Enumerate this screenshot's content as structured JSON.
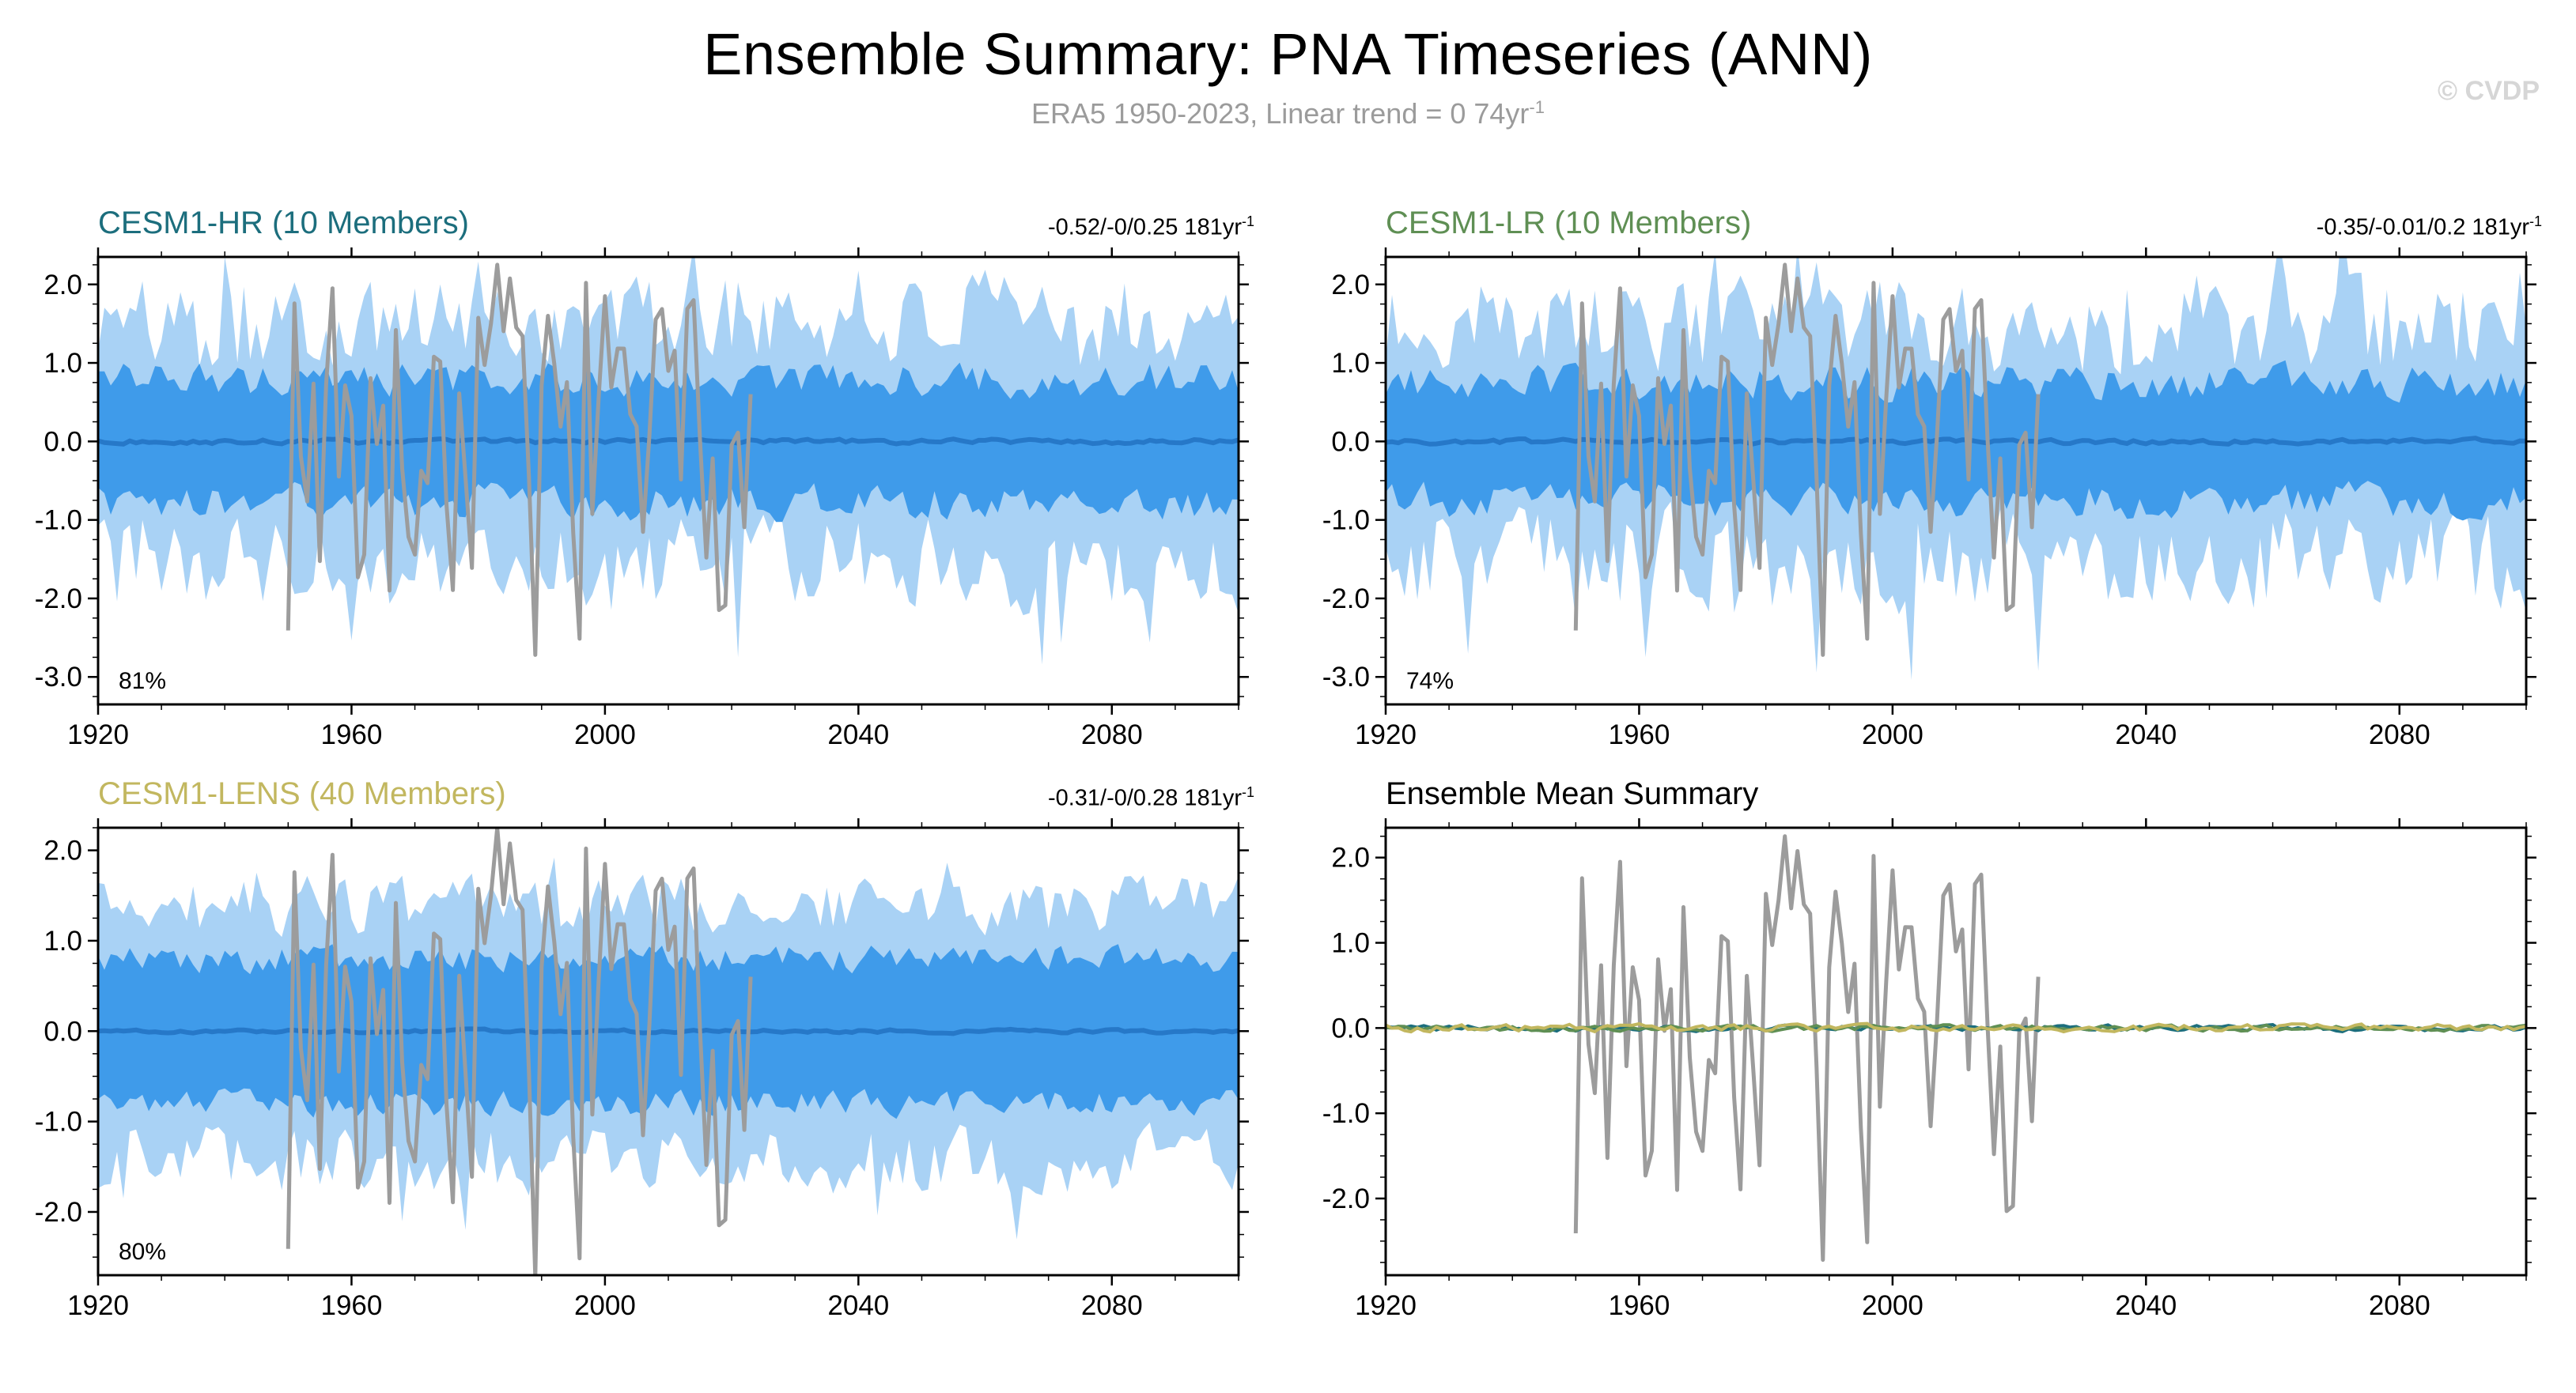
{
  "header": {
    "title": "Ensemble Summary: PNA Timeseries (ANN)",
    "subtitle_main": "ERA5 1950-2023, Linear trend = 0 74yr",
    "subtitle_sup": "-1",
    "watermark": "© CVDP"
  },
  "obs": {
    "x_start": 1950,
    "x_end": 2023,
    "seed": 7,
    "color": "#9C9C9C"
  },
  "chart_data": [
    {
      "type": "area",
      "panel": "cesm1-hr",
      "title": "CESM1-HR (10 Members)",
      "title_color": "#1C6E7D",
      "trend_main": "-0.52/-0/0.25 181yr",
      "trend_sup": "-1",
      "pct_label": "81%",
      "xlabel": "",
      "ylabel": "",
      "x_range": [
        1920,
        2100
      ],
      "x_ticks": [
        1920,
        1960,
        2000,
        2040,
        2080
      ],
      "x_minor_step": 10,
      "y_range": [
        -3.35,
        2.35
      ],
      "y_ticks": [
        -3.0,
        -2.0,
        -1.0,
        0.0,
        1.0,
        2.0
      ],
      "y_minor_step": 0.25,
      "colors": {
        "outer_band": "#A9D2F5",
        "inner_band": "#3F9BEA",
        "mean_line": "#2678C8"
      },
      "bands": {
        "seed": 101,
        "outer_up": [
          1.52,
          0.7
        ],
        "outer_dn": [
          -1.55,
          0.75
        ],
        "up_spike": [
          0.05,
          0.5
        ],
        "dn_spike": [
          0.07,
          0.8
        ],
        "inner_up": [
          0.78,
          0.3
        ],
        "inner_dn": [
          -0.78,
          0.3
        ],
        "mean_var": 0.05
      },
      "ensemble_lines": [],
      "obs_overlay": true
    },
    {
      "type": "area",
      "panel": "cesm1-lr",
      "title": "CESM1-LR (10 Members)",
      "title_color": "#5F8F54",
      "trend_main": "-0.35/-0.01/0.2 181yr",
      "trend_sup": "-1",
      "pct_label": "74%",
      "xlabel": "",
      "ylabel": "",
      "x_range": [
        1920,
        2100
      ],
      "x_ticks": [
        1920,
        1960,
        2000,
        2040,
        2080
      ],
      "x_minor_step": 10,
      "y_range": [
        -3.35,
        2.35
      ],
      "y_ticks": [
        -3.0,
        -2.0,
        -1.0,
        0.0,
        1.0,
        2.0
      ],
      "y_minor_step": 0.25,
      "colors": {
        "outer_band": "#A9D2F5",
        "inner_band": "#3F9BEA",
        "mean_line": "#2678C8"
      },
      "bands": {
        "seed": 202,
        "outer_up": [
          1.45,
          0.75
        ],
        "outer_dn": [
          -1.5,
          0.8
        ],
        "up_spike": [
          0.05,
          0.55
        ],
        "dn_spike": [
          0.06,
          0.9
        ],
        "inner_up": [
          0.75,
          0.3
        ],
        "inner_dn": [
          -0.75,
          0.3
        ],
        "mean_var": 0.05
      },
      "ensemble_lines": [],
      "obs_overlay": true
    },
    {
      "type": "area",
      "panel": "cesm1-lens",
      "title": "CESM1-LENS (40 Members)",
      "title_color": "#C2B75F",
      "trend_main": "-0.31/-0/0.28 181yr",
      "trend_sup": "-1",
      "pct_label": "80%",
      "xlabel": "",
      "ylabel": "",
      "x_range": [
        1920,
        2100
      ],
      "x_ticks": [
        1920,
        1960,
        2000,
        2040,
        2080
      ],
      "x_minor_step": 10,
      "y_range": [
        -2.7,
        2.25
      ],
      "y_ticks": [
        -2.0,
        -1.0,
        0.0,
        1.0,
        2.0
      ],
      "y_minor_step": 0.25,
      "colors": {
        "outer_band": "#A9D2F5",
        "inner_band": "#3F9BEA",
        "mean_line": "#2678C8"
      },
      "bands": {
        "seed": 303,
        "outer_up": [
          1.38,
          0.4
        ],
        "outer_dn": [
          -1.42,
          0.45
        ],
        "up_spike": [
          0.03,
          0.4
        ],
        "dn_spike": [
          0.03,
          0.45
        ],
        "inner_up": [
          0.8,
          0.2
        ],
        "inner_dn": [
          -0.8,
          0.2
        ],
        "mean_var": 0.03
      },
      "ensemble_lines": [],
      "obs_overlay": true
    },
    {
      "type": "line",
      "panel": "ensemble-mean-summary",
      "title": "Ensemble Mean Summary",
      "title_color": "#000000",
      "trend_main": "",
      "trend_sup": "",
      "pct_label": "",
      "xlabel": "",
      "ylabel": "",
      "x_range": [
        1920,
        2100
      ],
      "x_ticks": [
        1920,
        1960,
        2000,
        2040,
        2080
      ],
      "x_minor_step": 10,
      "y_range": [
        -2.9,
        2.35
      ],
      "y_ticks": [
        -2.0,
        -1.0,
        0.0,
        1.0,
        2.0
      ],
      "y_minor_step": 0.25,
      "colors": {},
      "bands": null,
      "ensemble_lines": [
        {
          "name": "cesm1-hr",
          "color": "#1C6E7D",
          "seed": 41,
          "amp": 0.05
        },
        {
          "name": "cesm1-lr",
          "color": "#5F8F54",
          "seed": 42,
          "amp": 0.05
        },
        {
          "name": "cesm1-lens",
          "color": "#C2B75F",
          "seed": 43,
          "amp": 0.06
        }
      ],
      "obs_overlay": true
    }
  ]
}
